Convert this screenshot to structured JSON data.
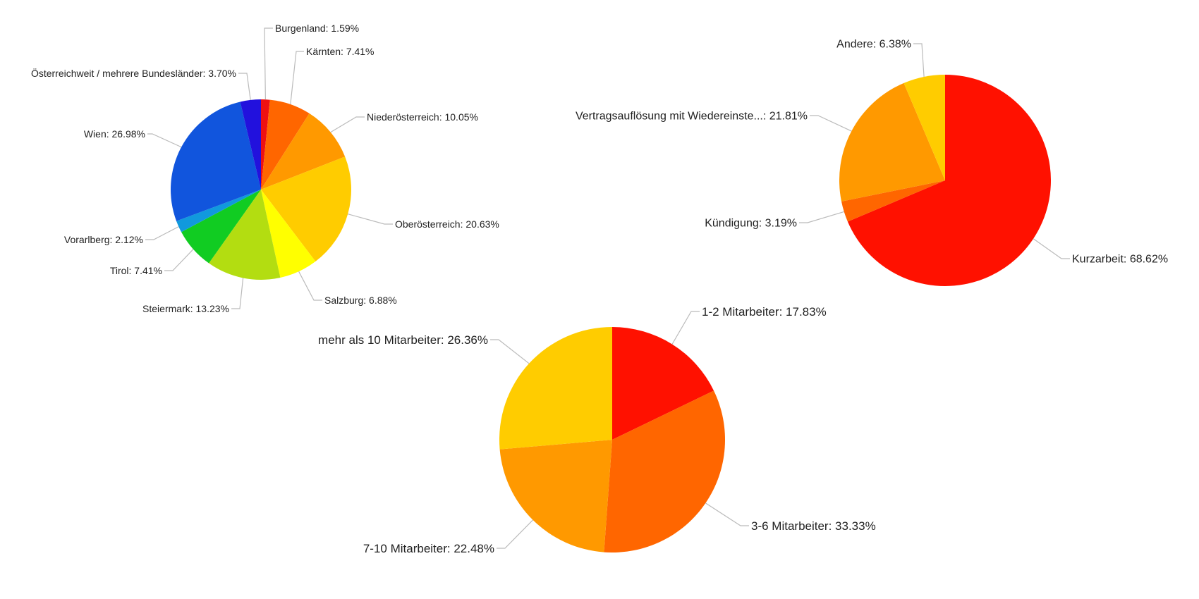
{
  "chart_data": [
    {
      "type": "pie",
      "title": "",
      "slices": [
        {
          "label": "Burgenland",
          "value": 1.59,
          "display": "Burgenland: 1.59%",
          "color": "#ee1111"
        },
        {
          "label": "Kärnten",
          "value": 7.41,
          "display": "Kärnten: 7.41%",
          "color": "#ff6600"
        },
        {
          "label": "Niederösterreich",
          "value": 10.05,
          "display": "Niederösterreich: 10.05%",
          "color": "#ff9900"
        },
        {
          "label": "Oberösterreich",
          "value": 20.63,
          "display": "Oberösterreich: 20.63%",
          "color": "#ffcc00"
        },
        {
          "label": "Salzburg",
          "value": 6.88,
          "display": "Salzburg: 6.88%",
          "color": "#ffff00"
        },
        {
          "label": "Steiermark",
          "value": 13.23,
          "display": "Steiermark: 13.23%",
          "color": "#b3dd11"
        },
        {
          "label": "Tirol",
          "value": 7.41,
          "display": "Tirol: 7.41%",
          "color": "#11cc22"
        },
        {
          "label": "Vorarlberg",
          "value": 2.12,
          "display": "Vorarlberg: 2.12%",
          "color": "#1199dd"
        },
        {
          "label": "Wien",
          "value": 26.98,
          "display": "Wien: 26.98%",
          "color": "#1155dd"
        },
        {
          "label": "Österreichweit / mehrere Bundesländer",
          "value": 3.7,
          "display": "Österreichweit / mehrere Bundesländer: 3.70%",
          "color": "#2211dd"
        }
      ]
    },
    {
      "type": "pie",
      "title": "",
      "slices": [
        {
          "label": "Kurzarbeit",
          "value": 68.62,
          "display": "Kurzarbeit: 68.62%",
          "color": "#ff1100"
        },
        {
          "label": "Kündigung",
          "value": 3.19,
          "display": "Kündigung: 3.19%",
          "color": "#ff6600"
        },
        {
          "label": "Vertragsauflösung mit Wiedereinste...",
          "value": 21.81,
          "display": "Vertragsauflösung mit Wiedereinste...: 21.81%",
          "color": "#ff9900"
        },
        {
          "label": "Andere",
          "value": 6.38,
          "display": "Andere: 6.38%",
          "color": "#ffcc00"
        }
      ]
    },
    {
      "type": "pie",
      "title": "",
      "slices": [
        {
          "label": "1-2 Mitarbeiter",
          "value": 17.83,
          "display": "1-2 Mitarbeiter: 17.83%",
          "color": "#ff1100"
        },
        {
          "label": "3-6 Mitarbeiter",
          "value": 33.33,
          "display": "3-6 Mitarbeiter: 33.33%",
          "color": "#ff6600"
        },
        {
          "label": "7-10 Mitarbeiter",
          "value": 22.48,
          "display": "7-10 Mitarbeiter: 22.48%",
          "color": "#ff9900"
        },
        {
          "label": "mehr als 10 Mitarbeiter",
          "value": 26.36,
          "display": "mehr als 10 Mitarbeiter: 26.36%",
          "color": "#ffcc00"
        }
      ]
    }
  ]
}
